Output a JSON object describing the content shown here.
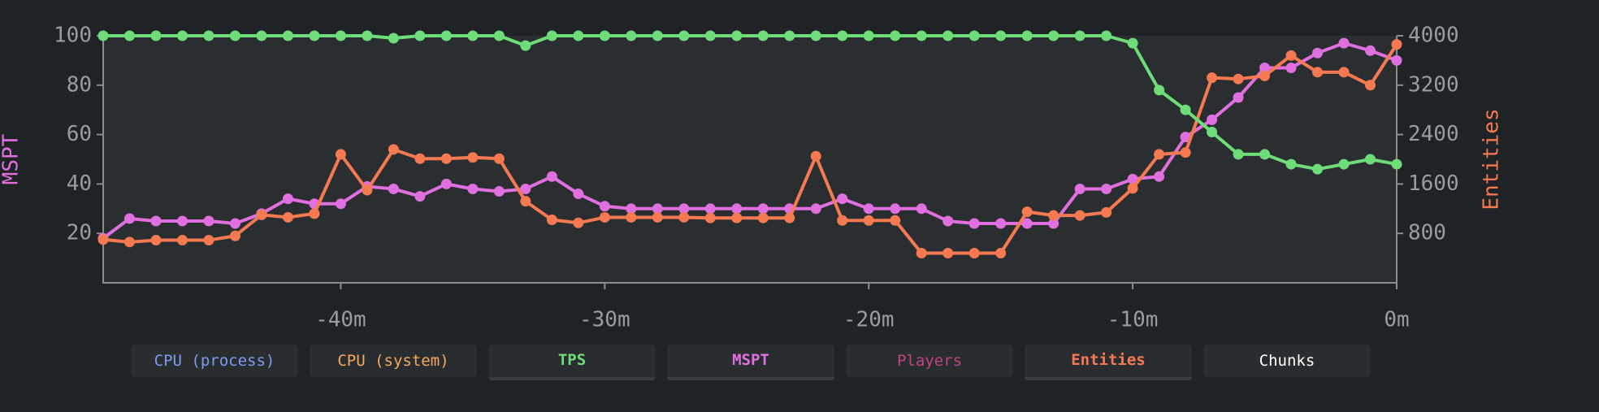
{
  "chart_data": {
    "type": "line",
    "ylabel": "MSPT",
    "y2label": "Entities",
    "x": [
      -49,
      -48,
      -47,
      -46,
      -45,
      -44,
      -43,
      -42,
      -41,
      -40,
      -39,
      -38,
      -37,
      -36,
      -35,
      -34,
      -33,
      -32,
      -31,
      -30,
      -29,
      -28,
      -27,
      -26,
      -25,
      -24,
      -23,
      -22,
      -21,
      -20,
      -19,
      -18,
      -17,
      -16,
      -15,
      -14,
      -13,
      -12,
      -11,
      -10,
      -9,
      -8,
      -7,
      -6,
      -5,
      -4,
      -3,
      -2,
      -1,
      0
    ],
    "xlim": [
      -49,
      0
    ],
    "xticks": [
      {
        "value": -40,
        "label": "-40m"
      },
      {
        "value": -30,
        "label": "-30m"
      },
      {
        "value": -20,
        "label": "-20m"
      },
      {
        "value": -10,
        "label": "-10m"
      },
      {
        "value": 0,
        "label": "0m"
      }
    ],
    "ylim": [
      0,
      100
    ],
    "yticks": [
      20,
      40,
      60,
      80,
      100
    ],
    "y2lim": [
      0,
      4000
    ],
    "y2ticks": [
      800,
      1600,
      2400,
      3200,
      4000
    ],
    "series": [
      {
        "name": "CPU (process)",
        "color": "#7d9cf0",
        "visible": false
      },
      {
        "name": "CPU (system)",
        "color": "#f5a85e",
        "visible": false
      },
      {
        "name": "TPS",
        "color": "#6fdc7a",
        "visible": true,
        "values": [
          100,
          100,
          100,
          100,
          100,
          100,
          100,
          100,
          100,
          100,
          100,
          99,
          100,
          100,
          100,
          100,
          96,
          100,
          100,
          100,
          100,
          100,
          100,
          100,
          100,
          100,
          100,
          100,
          100,
          100,
          100,
          100,
          100,
          100,
          100,
          100,
          100,
          100,
          100,
          97,
          78,
          70,
          61,
          52,
          52,
          48,
          46,
          48,
          50,
          48
        ]
      },
      {
        "name": "MSPT",
        "color": "#e070e0",
        "visible": true,
        "values": [
          18,
          26,
          25,
          25,
          25,
          24,
          28,
          34,
          32,
          32,
          39,
          38,
          35,
          40,
          38,
          37,
          38,
          43,
          36,
          31,
          30,
          30,
          30,
          30,
          30,
          30,
          30,
          30,
          34,
          30,
          30,
          30,
          25,
          24,
          24,
          24,
          24,
          38,
          38,
          42,
          43,
          59,
          66,
          75,
          87,
          87,
          93,
          97,
          94,
          90
        ]
      },
      {
        "name": "Players",
        "color": "#c0447e",
        "visible": false
      },
      {
        "name": "Entities",
        "color": "#f57a52",
        "visible": true,
        "axis": "y2",
        "values": [
          700,
          660,
          690,
          690,
          690,
          760,
          1100,
          1060,
          1120,
          2080,
          1500,
          2160,
          2010,
          2010,
          2030,
          2010,
          1320,
          1020,
          970,
          1060,
          1060,
          1060,
          1060,
          1050,
          1050,
          1050,
          1050,
          2050,
          1010,
          1010,
          1010,
          480,
          480,
          480,
          480,
          1150,
          1090,
          1090,
          1140,
          1530,
          2080,
          2110,
          3320,
          3300,
          3350,
          3680,
          3410,
          3410,
          3200,
          3860
        ]
      },
      {
        "name": "Chunks",
        "color": "#ffffff",
        "visible": false
      }
    ]
  }
}
